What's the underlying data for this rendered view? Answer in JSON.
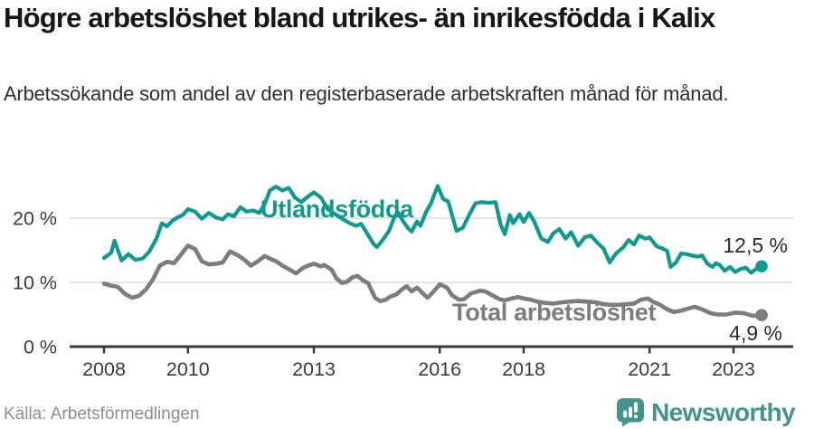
{
  "header": {
    "title": "Högre arbetslöshet bland utrikes- än inrikesfödda i Kalix",
    "subtitle": "Arbetssökande som andel av den registerbaserade arbetskraften månad för månad."
  },
  "footer": {
    "source": "Källa: Arbetsförmedlingen",
    "brand": "Newsworthy",
    "brand_color": "#43948d"
  },
  "chart_data": {
    "type": "line",
    "title": "Högre arbetslöshet bland utrikes- än inrikesfödda i Kalix",
    "subtitle": "Arbetssökande som andel av den registerbaserade arbetskraften månad för månad.",
    "xlabel": "",
    "ylabel": "",
    "xlim": [
      2007.2,
      2024.4
    ],
    "ylim": [
      0,
      28.5
    ],
    "grid": "horizontal",
    "legend": "inline-labels",
    "style": {
      "grid_color": "#dcdcdc",
      "axis_color": "#3a3a3a",
      "tick_text_color": "#3c3c3c",
      "background": "#ffffff"
    },
    "x_axis": {
      "ticks": [
        {
          "v": 2008,
          "label": "2008"
        },
        {
          "v": 2010,
          "label": "2010"
        },
        {
          "v": 2013,
          "label": "2013"
        },
        {
          "v": 2016,
          "label": "2016"
        },
        {
          "v": 2018,
          "label": "2018"
        },
        {
          "v": 2021,
          "label": "2021"
        },
        {
          "v": 2023,
          "label": "2023"
        }
      ]
    },
    "y_axis": {
      "ticks": [
        {
          "v": 0,
          "label": "0 %"
        },
        {
          "v": 10,
          "label": "10 %"
        },
        {
          "v": 20,
          "label": "20 %"
        }
      ]
    },
    "series": [
      {
        "name": "Utlandsfödda",
        "color": "#0e9a8e",
        "stroke_width": 4.2,
        "end_label": "12,5 %",
        "end_value": 12.5,
        "points": [
          [
            2008.0,
            13.8
          ],
          [
            2008.17,
            14.6
          ],
          [
            2008.25,
            16.5
          ],
          [
            2008.42,
            13.4
          ],
          [
            2008.58,
            14.4
          ],
          [
            2008.75,
            13.5
          ],
          [
            2008.92,
            13.7
          ],
          [
            2009.08,
            14.8
          ],
          [
            2009.25,
            16.8
          ],
          [
            2009.38,
            19.2
          ],
          [
            2009.5,
            18.7
          ],
          [
            2009.63,
            19.6
          ],
          [
            2009.75,
            20.1
          ],
          [
            2009.88,
            20.5
          ],
          [
            2010.0,
            21.4
          ],
          [
            2010.17,
            21.0
          ],
          [
            2010.33,
            19.9
          ],
          [
            2010.5,
            20.8
          ],
          [
            2010.67,
            20.1
          ],
          [
            2010.83,
            19.8
          ],
          [
            2010.95,
            20.6
          ],
          [
            2011.1,
            20.3
          ],
          [
            2011.25,
            21.7
          ],
          [
            2011.4,
            21.0
          ],
          [
            2011.55,
            21.2
          ],
          [
            2011.7,
            20.8
          ],
          [
            2011.83,
            22.2
          ],
          [
            2011.95,
            24.3
          ],
          [
            2012.1,
            24.9
          ],
          [
            2012.25,
            24.3
          ],
          [
            2012.4,
            24.7
          ],
          [
            2012.55,
            23.2
          ],
          [
            2012.7,
            22.5
          ],
          [
            2012.85,
            23.3
          ],
          [
            2013.0,
            24.0
          ],
          [
            2013.17,
            23.2
          ],
          [
            2013.33,
            21.4
          ],
          [
            2013.58,
            20.3
          ],
          [
            2013.83,
            19.3
          ],
          [
            2014.0,
            18.8
          ],
          [
            2014.13,
            19.1
          ],
          [
            2014.29,
            17.4
          ],
          [
            2014.42,
            16.0
          ],
          [
            2014.5,
            15.5
          ],
          [
            2014.63,
            16.5
          ],
          [
            2014.79,
            18.0
          ],
          [
            2014.92,
            20.2
          ],
          [
            2015.0,
            20.9
          ],
          [
            2015.13,
            19.5
          ],
          [
            2015.25,
            18.4
          ],
          [
            2015.33,
            17.9
          ],
          [
            2015.46,
            19.5
          ],
          [
            2015.54,
            18.8
          ],
          [
            2015.67,
            20.9
          ],
          [
            2015.79,
            22.3
          ],
          [
            2015.95,
            25.0
          ],
          [
            2016.08,
            23.0
          ],
          [
            2016.2,
            22.6
          ],
          [
            2016.4,
            18.0
          ],
          [
            2016.55,
            18.5
          ],
          [
            2016.7,
            20.5
          ],
          [
            2016.85,
            22.3
          ],
          [
            2017.0,
            22.5
          ],
          [
            2017.17,
            22.4
          ],
          [
            2017.33,
            22.5
          ],
          [
            2017.45,
            19.0
          ],
          [
            2017.55,
            17.5
          ],
          [
            2017.67,
            20.5
          ],
          [
            2017.75,
            19.2
          ],
          [
            2017.9,
            20.6
          ],
          [
            2018.0,
            19.4
          ],
          [
            2018.13,
            20.8
          ],
          [
            2018.25,
            19.5
          ],
          [
            2018.42,
            16.8
          ],
          [
            2018.58,
            16.3
          ],
          [
            2018.7,
            17.6
          ],
          [
            2018.85,
            18.3
          ],
          [
            2019.0,
            16.8
          ],
          [
            2019.13,
            17.8
          ],
          [
            2019.3,
            15.7
          ],
          [
            2019.45,
            17.0
          ],
          [
            2019.6,
            17.3
          ],
          [
            2019.75,
            16.2
          ],
          [
            2019.9,
            15.3
          ],
          [
            2020.05,
            13.1
          ],
          [
            2020.2,
            14.5
          ],
          [
            2020.38,
            15.5
          ],
          [
            2020.5,
            16.6
          ],
          [
            2020.63,
            15.9
          ],
          [
            2020.75,
            17.3
          ],
          [
            2020.9,
            16.8
          ],
          [
            2021.0,
            17.0
          ],
          [
            2021.17,
            15.6
          ],
          [
            2021.3,
            15.3
          ],
          [
            2021.42,
            14.9
          ],
          [
            2021.5,
            12.4
          ],
          [
            2021.63,
            13.1
          ],
          [
            2021.75,
            14.5
          ],
          [
            2021.88,
            14.4
          ],
          [
            2022.0,
            14.2
          ],
          [
            2022.13,
            14.0
          ],
          [
            2022.25,
            14.2
          ],
          [
            2022.38,
            12.9
          ],
          [
            2022.5,
            12.4
          ],
          [
            2022.58,
            13.0
          ],
          [
            2022.67,
            12.7
          ],
          [
            2022.79,
            11.8
          ],
          [
            2022.92,
            12.4
          ],
          [
            2023.04,
            11.6
          ],
          [
            2023.17,
            12.1
          ],
          [
            2023.29,
            12.3
          ],
          [
            2023.42,
            11.5
          ],
          [
            2023.54,
            12.1
          ],
          [
            2023.67,
            12.5
          ]
        ]
      },
      {
        "name": "Total arbetslöshet",
        "color": "#7d7d7d",
        "stroke_width": 4.6,
        "end_label": "4,9 %",
        "end_value": 4.9,
        "points": [
          [
            2008.0,
            9.8
          ],
          [
            2008.17,
            9.5
          ],
          [
            2008.33,
            9.3
          ],
          [
            2008.5,
            8.2
          ],
          [
            2008.67,
            7.6
          ],
          [
            2008.83,
            7.9
          ],
          [
            2009.0,
            8.9
          ],
          [
            2009.17,
            10.5
          ],
          [
            2009.33,
            12.6
          ],
          [
            2009.5,
            13.2
          ],
          [
            2009.67,
            13.0
          ],
          [
            2009.83,
            14.3
          ],
          [
            2010.0,
            15.7
          ],
          [
            2010.17,
            15.2
          ],
          [
            2010.33,
            13.3
          ],
          [
            2010.5,
            12.8
          ],
          [
            2010.67,
            12.9
          ],
          [
            2010.83,
            13.1
          ],
          [
            2011.0,
            14.8
          ],
          [
            2011.17,
            14.3
          ],
          [
            2011.33,
            13.6
          ],
          [
            2011.5,
            12.6
          ],
          [
            2011.67,
            13.3
          ],
          [
            2011.83,
            14.1
          ],
          [
            2011.95,
            13.7
          ],
          [
            2012.1,
            13.3
          ],
          [
            2012.25,
            12.6
          ],
          [
            2012.42,
            12.0
          ],
          [
            2012.58,
            11.4
          ],
          [
            2012.75,
            12.3
          ],
          [
            2012.9,
            12.7
          ],
          [
            2013.0,
            12.9
          ],
          [
            2013.17,
            12.5
          ],
          [
            2013.25,
            12.7
          ],
          [
            2013.42,
            12.0
          ],
          [
            2013.54,
            10.6
          ],
          [
            2013.67,
            9.9
          ],
          [
            2013.79,
            10.1
          ],
          [
            2013.92,
            10.8
          ],
          [
            2014.04,
            11.0
          ],
          [
            2014.17,
            10.3
          ],
          [
            2014.29,
            9.9
          ],
          [
            2014.38,
            8.7
          ],
          [
            2014.46,
            7.6
          ],
          [
            2014.58,
            7.1
          ],
          [
            2014.71,
            7.3
          ],
          [
            2014.83,
            7.8
          ],
          [
            2014.96,
            8.1
          ],
          [
            2015.08,
            8.8
          ],
          [
            2015.21,
            9.4
          ],
          [
            2015.33,
            8.6
          ],
          [
            2015.46,
            9.2
          ],
          [
            2015.58,
            8.4
          ],
          [
            2015.71,
            7.6
          ],
          [
            2015.83,
            8.4
          ],
          [
            2016.0,
            9.7
          ],
          [
            2016.17,
            9.2
          ],
          [
            2016.29,
            8.0
          ],
          [
            2016.46,
            7.3
          ],
          [
            2016.58,
            7.4
          ],
          [
            2016.75,
            8.3
          ],
          [
            2016.96,
            8.7
          ],
          [
            2017.08,
            8.6
          ],
          [
            2017.25,
            8.0
          ],
          [
            2017.42,
            7.4
          ],
          [
            2017.54,
            7.2
          ],
          [
            2017.71,
            7.5
          ],
          [
            2017.88,
            7.7
          ],
          [
            2018.0,
            7.5
          ],
          [
            2018.17,
            7.3
          ],
          [
            2018.33,
            7.0
          ],
          [
            2018.5,
            6.8
          ],
          [
            2018.71,
            6.7
          ],
          [
            2018.92,
            6.9
          ],
          [
            2019.08,
            7.0
          ],
          [
            2019.29,
            7.1
          ],
          [
            2019.5,
            7.0
          ],
          [
            2019.71,
            6.9
          ],
          [
            2019.92,
            6.6
          ],
          [
            2020.08,
            6.5
          ],
          [
            2020.25,
            6.5
          ],
          [
            2020.46,
            6.6
          ],
          [
            2020.63,
            6.7
          ],
          [
            2020.79,
            7.3
          ],
          [
            2020.96,
            7.5
          ],
          [
            2021.08,
            7.0
          ],
          [
            2021.25,
            6.5
          ],
          [
            2021.42,
            5.8
          ],
          [
            2021.58,
            5.4
          ],
          [
            2021.75,
            5.6
          ],
          [
            2021.96,
            6.0
          ],
          [
            2022.08,
            6.2
          ],
          [
            2022.25,
            5.8
          ],
          [
            2022.46,
            5.2
          ],
          [
            2022.63,
            5.0
          ],
          [
            2022.83,
            5.0
          ],
          [
            2023.04,
            5.3
          ],
          [
            2023.25,
            5.2
          ],
          [
            2023.46,
            4.8
          ],
          [
            2023.67,
            4.9
          ]
        ]
      }
    ]
  }
}
